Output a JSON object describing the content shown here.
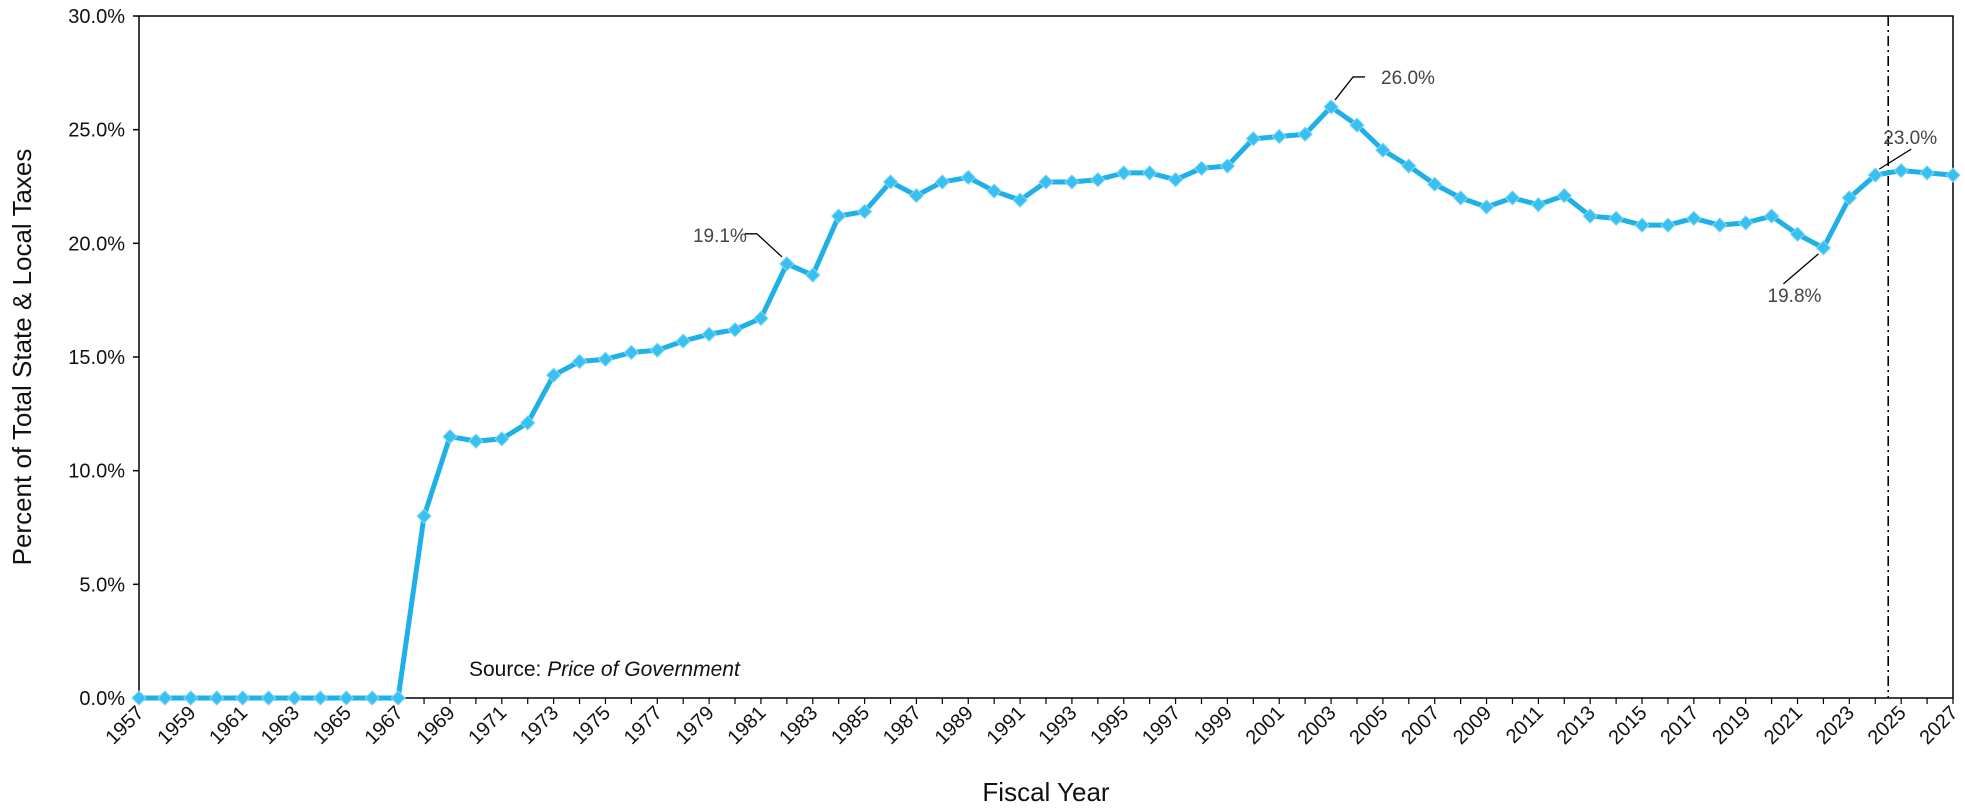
{
  "chart_data": {
    "type": "line",
    "title": "",
    "xlabel": "Fiscal Year",
    "ylabel": "Percent of Total State & Local Taxes",
    "ylim": [
      0,
      30
    ],
    "yticks": [
      "0.0%",
      "5.0%",
      "10.0%",
      "15.0%",
      "20.0%",
      "25.0%",
      "30.0%"
    ],
    "xticks": [
      "1957",
      "1959",
      "1961",
      "1963",
      "1965",
      "1967",
      "1969",
      "1971",
      "1973",
      "1975",
      "1977",
      "1979",
      "1981",
      "1983",
      "1985",
      "1987",
      "1989",
      "1991",
      "1993",
      "1995",
      "1997",
      "1999",
      "2001",
      "2003",
      "2005",
      "2007",
      "2009",
      "2011",
      "2013",
      "2015",
      "2017",
      "2019",
      "2021",
      "2023",
      "2025",
      "2027"
    ],
    "grid": false,
    "legend": "none",
    "projection_line_year": 2024.5,
    "series_color": "#1fb0e8",
    "marker_color": "#38c0f0",
    "series": [
      {
        "x": [
          1957,
          1958,
          1959,
          1960,
          1961,
          1962,
          1963,
          1964,
          1965,
          1966,
          1967,
          1968,
          1969,
          1970,
          1971,
          1972,
          1973,
          1974,
          1975,
          1976,
          1977,
          1978,
          1979,
          1980,
          1981,
          1982,
          1983,
          1984,
          1985,
          1986,
          1987,
          1988,
          1989,
          1990,
          1991,
          1992,
          1993,
          1994,
          1995,
          1996,
          1997,
          1998,
          1999,
          2000,
          2001,
          2002,
          2003,
          2004,
          2005,
          2006,
          2007,
          2008,
          2009,
          2010,
          2011,
          2012,
          2013,
          2014,
          2015,
          2016,
          2017,
          2018,
          2019,
          2020,
          2021,
          2022,
          2023,
          2024,
          2025,
          2026,
          2027
        ],
        "values": [
          0,
          0,
          0,
          0,
          0,
          0,
          0,
          0,
          0,
          0,
          0,
          8.0,
          11.5,
          11.3,
          11.4,
          12.1,
          14.2,
          14.8,
          14.9,
          15.2,
          15.3,
          15.7,
          16.0,
          16.2,
          16.7,
          19.1,
          18.6,
          21.2,
          21.4,
          22.7,
          22.1,
          22.7,
          22.9,
          22.3,
          21.9,
          22.7,
          22.7,
          22.8,
          23.1,
          23.1,
          22.8,
          23.3,
          23.4,
          24.6,
          24.7,
          24.8,
          26.0,
          25.2,
          24.1,
          23.4,
          22.6,
          22.0,
          21.6,
          22.0,
          21.7,
          22.1,
          21.2,
          21.1,
          20.8,
          20.8,
          21.1,
          20.8,
          20.9,
          21.2,
          20.4,
          19.8,
          22.0,
          23.0,
          23.2,
          23.1,
          23.0
        ]
      }
    ],
    "annotations": [
      {
        "year": 1982,
        "text": "19.1%"
      },
      {
        "year": 2003,
        "text": "26.0%"
      },
      {
        "year": 2022,
        "text": "19.8%"
      },
      {
        "year": 2024,
        "text": "23.0%"
      }
    ],
    "source_prefix": "Source: ",
    "source_title": "Price of Government"
  }
}
